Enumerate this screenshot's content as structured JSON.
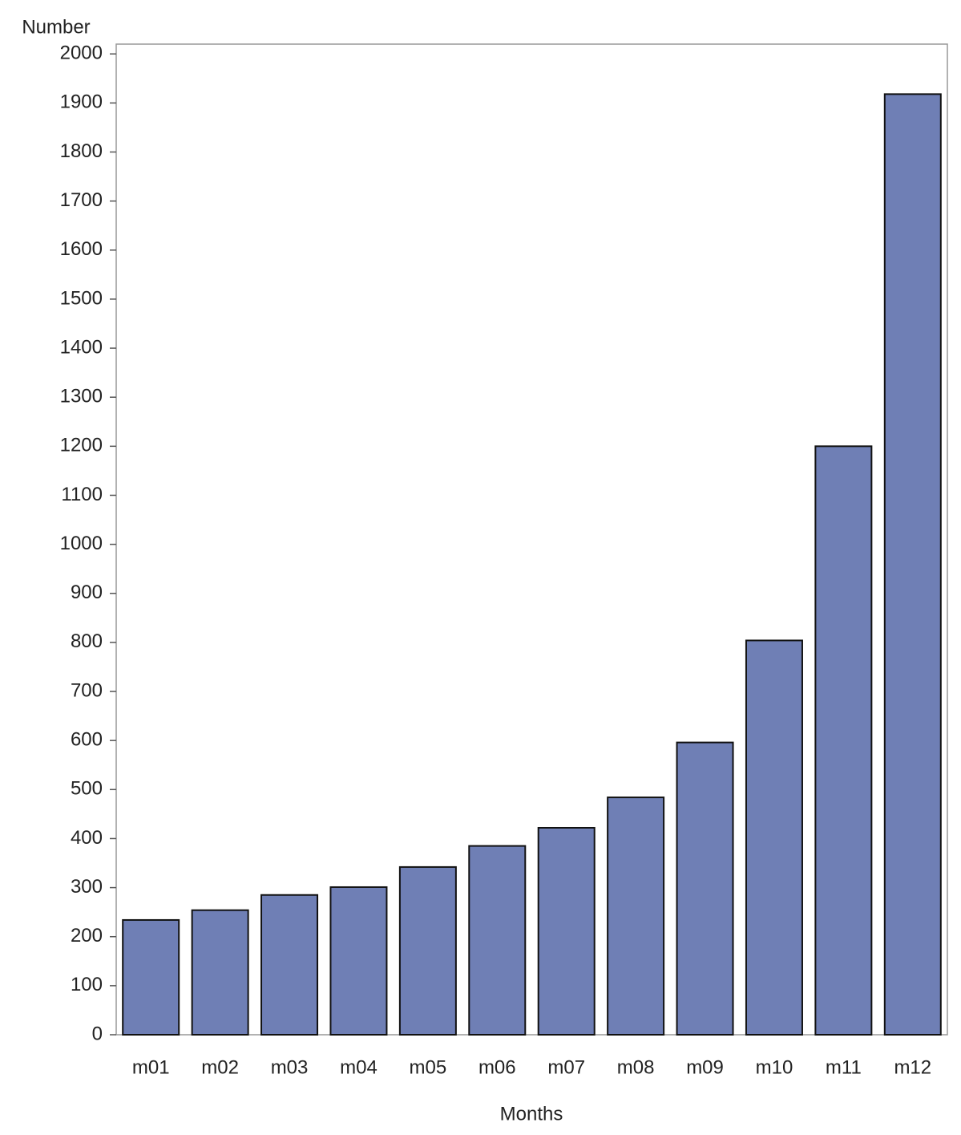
{
  "chart_data": {
    "type": "bar",
    "ylabel": "Number",
    "xlabel": "Months",
    "categories": [
      "m01",
      "m02",
      "m03",
      "m04",
      "m05",
      "m06",
      "m07",
      "m08",
      "m09",
      "m10",
      "m11",
      "m12"
    ],
    "values": [
      234,
      254,
      285,
      301,
      342,
      385,
      422,
      484,
      596,
      804,
      1200,
      1918
    ],
    "color": "#6f7fb5",
    "ylim": [
      0,
      2020
    ],
    "yticks": [
      0,
      100,
      200,
      300,
      400,
      500,
      600,
      700,
      800,
      900,
      1000,
      1100,
      1200,
      1300,
      1400,
      1500,
      1600,
      1700,
      1800,
      1900,
      2000
    ],
    "grid": false
  }
}
